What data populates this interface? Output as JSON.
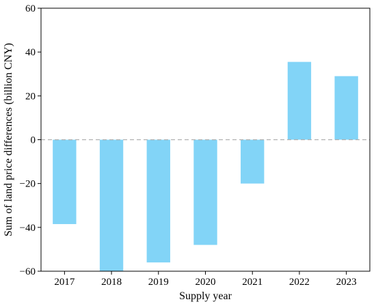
{
  "chart_data": {
    "type": "bar",
    "categories": [
      "2017",
      "2018",
      "2019",
      "2020",
      "2021",
      "2022",
      "2023"
    ],
    "values": [
      -38.5,
      -61,
      -56,
      -48,
      -20,
      35.5,
      29
    ],
    "title": "",
    "xlabel": "Supply year",
    "ylabel": "Sum of land price differences (billion CNY)",
    "ylim": [
      -60,
      60
    ],
    "yticks": [
      -60,
      -40,
      -20,
      0,
      20,
      40,
      60
    ],
    "ytick_labels": [
      "−60",
      "−40",
      "−20",
      "0",
      "20",
      "40",
      "60"
    ],
    "grid": false,
    "zero_line": "dashed",
    "colors": {
      "bar": "#82d4f7",
      "zero_line": "#b0b0b0",
      "axis": "#000000"
    }
  }
}
